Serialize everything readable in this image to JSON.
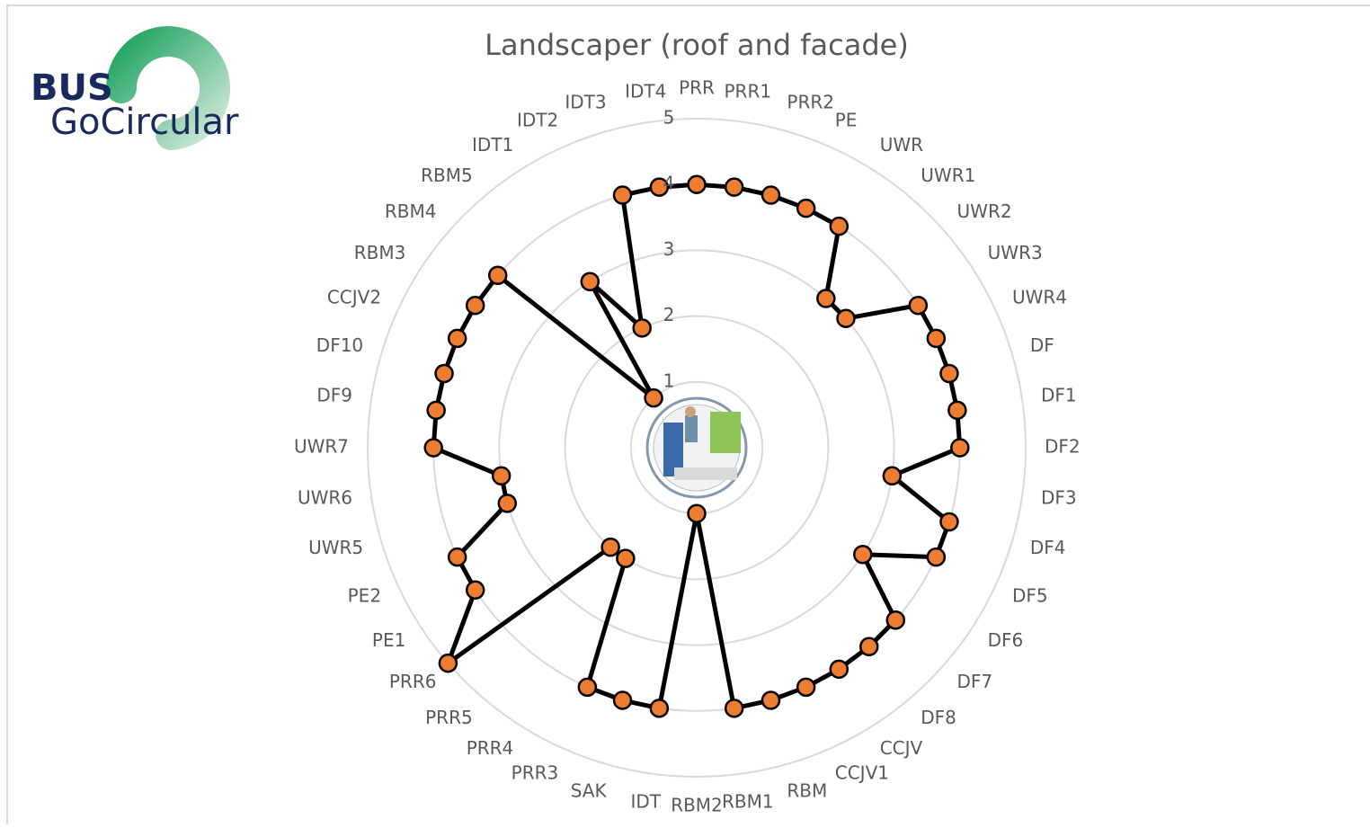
{
  "logo": {
    "line1": "BUS",
    "line2": "GoCircular"
  },
  "chart_data": {
    "type": "radar",
    "title": "Landscaper (roof and facade)",
    "categories": [
      "PRR",
      "PRR1",
      "PRR2",
      "PE",
      "UWR",
      "UWR1",
      "UWR2",
      "UWR3",
      "UWR4",
      "DF",
      "DF1",
      "DF2",
      "DF3",
      "DF4",
      "DF5",
      "DF6",
      "DF7",
      "DF8",
      "CCJV",
      "CCJV1",
      "RBM",
      "RBM1",
      "RBM2",
      "IDT",
      "SAK",
      "PRR3",
      "PRR4",
      "PRR5",
      "PRR6",
      "PE1",
      "PE2",
      "UWR5",
      "UWR6",
      "UWR7",
      "DF9",
      "DF10",
      "CCJV2",
      "RBM3",
      "RBM4",
      "RBM5",
      "IDT1",
      "IDT2",
      "IDT3",
      "IDT4"
    ],
    "values": [
      4,
      4,
      4,
      4,
      4,
      3,
      3,
      4,
      4,
      4,
      4,
      4,
      3,
      4,
      4,
      3,
      4,
      4,
      4,
      4,
      4,
      4,
      1,
      4,
      4,
      4,
      2,
      2,
      5,
      4,
      4,
      3,
      3,
      4,
      4,
      4,
      4,
      4,
      4,
      1,
      3,
      2,
      4,
      4
    ],
    "line_color": "#000000",
    "marker_color": "#ED7D31",
    "ylim": [
      0,
      5
    ],
    "yticks": [
      1,
      2,
      3,
      4,
      5
    ],
    "grid": true
  }
}
